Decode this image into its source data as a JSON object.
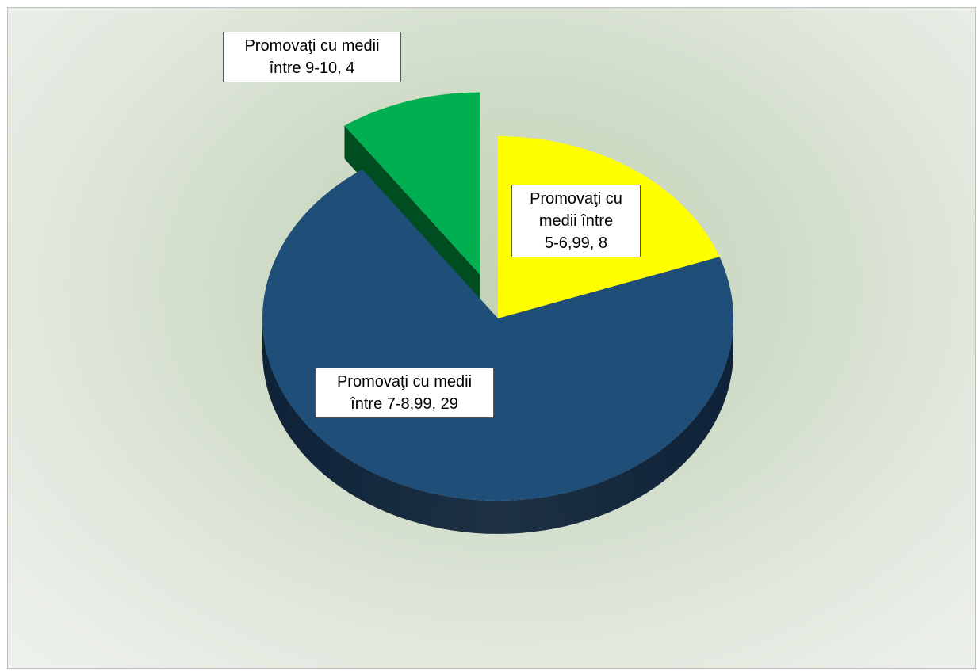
{
  "chart_data": {
    "type": "pie",
    "style": "3d-exploded",
    "title": "",
    "slices": [
      {
        "label_lines": [
          "Promovaţi cu",
          "medii între",
          "5-6,99, 8"
        ],
        "category": "Promovaţi cu medii între 5-6,99",
        "value": 8,
        "color": "#ffff00",
        "side_color": "#b8b800",
        "exploded": false
      },
      {
        "label_lines": [
          "Promovaţi cu medii",
          "între 7-8,99, 29"
        ],
        "category": "Promovaţi cu medii între 7-8,99",
        "value": 29,
        "color": "#1f4e79",
        "side_color": "#0e2238",
        "exploded": false
      },
      {
        "label_lines": [
          "Promovaţi cu medii",
          "între 9-10, 4"
        ],
        "category": "Promovaţi cu medii între 9-10",
        "value": 4,
        "color": "#00b050",
        "side_color": "#004d22",
        "exploded": true
      }
    ]
  }
}
